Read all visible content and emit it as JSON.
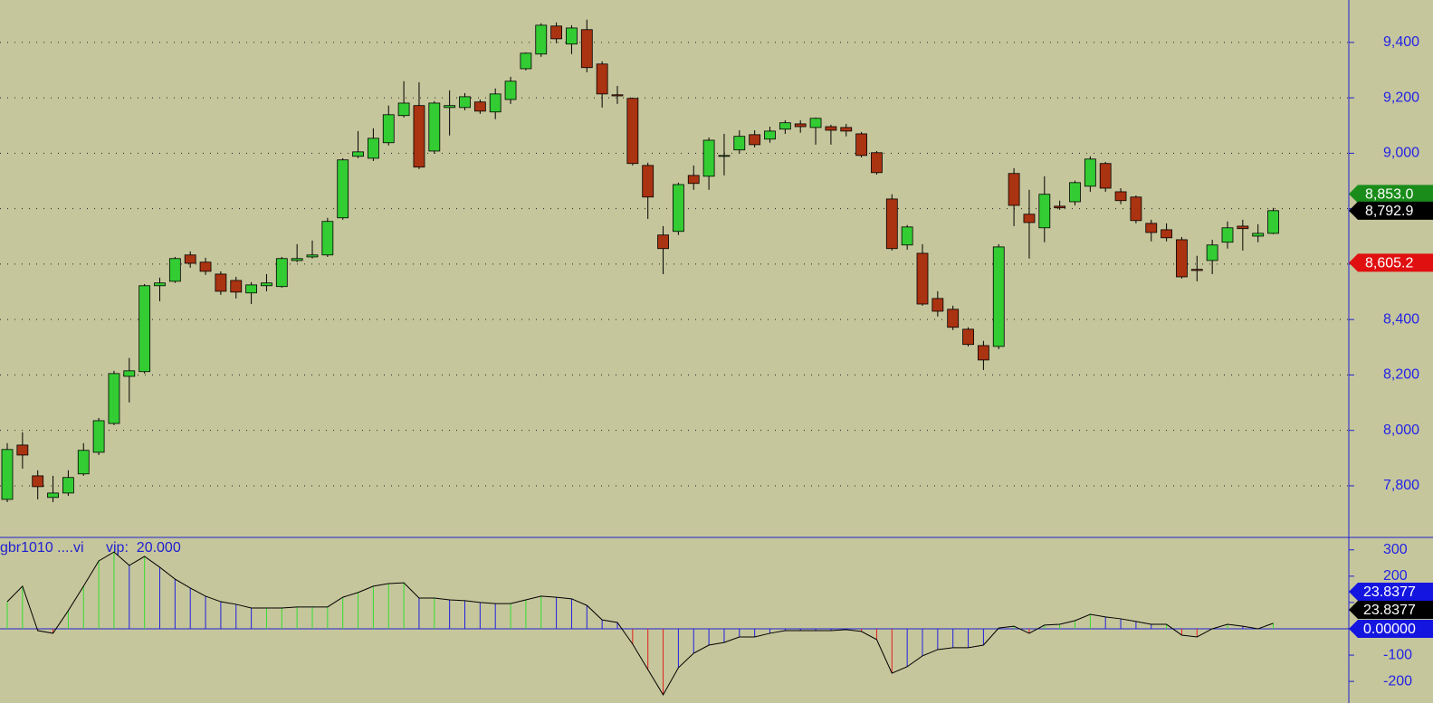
{
  "chart_data": [
    {
      "type": "candlestick",
      "up_color": "#33cc33",
      "down_color": "#aa3311",
      "grid": true,
      "ylim": [
        7617,
        9553
      ],
      "yticks": [
        {
          "value": 7800,
          "label": "7,800"
        },
        {
          "value": 8000,
          "label": "8,000"
        },
        {
          "value": 8200,
          "label": "8,200"
        },
        {
          "value": 8400,
          "label": "8,400"
        },
        {
          "value": 8600,
          "label": "8,600"
        },
        {
          "value": 8800,
          "label": "8,800"
        },
        {
          "value": 9000,
          "label": "9,000"
        },
        {
          "value": 9200,
          "label": "9,200"
        },
        {
          "value": 9400,
          "label": "9,400"
        }
      ],
      "open": [
        7751,
        7947,
        7836,
        7758,
        7774,
        7843,
        7921,
        8025,
        8195,
        8212,
        8522,
        8538,
        8633,
        8607,
        8564,
        8541,
        8496,
        8522,
        8519,
        8613,
        8626,
        8633,
        8767,
        8989,
        8982,
        9038,
        9136,
        9172,
        9008,
        9165,
        9165,
        9185,
        9149,
        9194,
        9305,
        9358,
        9459,
        9394,
        9446,
        9322,
        9211,
        9198,
        8956,
        8705,
        8718,
        8920,
        8917,
        8989,
        9012,
        9067,
        9051,
        9087,
        9106,
        9093,
        9096,
        9093,
        9070,
        9002,
        8835,
        8669,
        8639,
        8476,
        8437,
        8365,
        8306,
        8303,
        8927,
        8780,
        8731,
        8809,
        8825,
        8881,
        8963,
        8861,
        8842,
        8747,
        8724,
        8688,
        8581,
        8613,
        8679,
        8737,
        8701,
        8711
      ],
      "high": [
        7954,
        7993,
        7856,
        7836,
        7856,
        7954,
        8045,
        8215,
        8261,
        8528,
        8551,
        8626,
        8646,
        8623,
        8574,
        8554,
        8535,
        8564,
        8626,
        8672,
        8685,
        8767,
        8982,
        9080,
        9090,
        9172,
        9260,
        9256,
        9188,
        9227,
        9217,
        9194,
        9234,
        9276,
        9364,
        9469,
        9472,
        9462,
        9482,
        9332,
        9243,
        9201,
        8966,
        8737,
        8894,
        8956,
        9057,
        9070,
        9083,
        9083,
        9096,
        9119,
        9119,
        9129,
        9103,
        9106,
        9077,
        9008,
        8852,
        8741,
        8672,
        8502,
        8450,
        8372,
        8323,
        8672,
        8946,
        8868,
        8917,
        8829,
        8901,
        8989,
        8969,
        8874,
        8848,
        8760,
        8747,
        8698,
        8630,
        8688,
        8754,
        8760,
        8744,
        8803
      ],
      "low": [
        7741,
        7862,
        7751,
        7741,
        7764,
        7836,
        7911,
        8019,
        8101,
        8205,
        8466,
        8532,
        8587,
        8561,
        8489,
        8476,
        8456,
        8502,
        8515,
        8607,
        8620,
        8626,
        8760,
        8982,
        8972,
        9028,
        9129,
        8943,
        8999,
        9064,
        9155,
        9142,
        9123,
        9178,
        9299,
        9348,
        9397,
        9358,
        9292,
        9165,
        9178,
        8956,
        8763,
        8564,
        8705,
        8868,
        8868,
        8920,
        8999,
        9021,
        9038,
        9070,
        9074,
        9031,
        9031,
        9061,
        8985,
        8923,
        8649,
        8652,
        8450,
        8411,
        8362,
        8303,
        8218,
        8293,
        8737,
        8620,
        8679,
        8796,
        8812,
        8861,
        8861,
        8816,
        8747,
        8682,
        8682,
        8548,
        8538,
        8564,
        8656,
        8649,
        8679,
        8708
      ],
      "close": [
        7931,
        7911,
        7797,
        7774,
        7830,
        7928,
        8035,
        8205,
        8215,
        8522,
        8532,
        8620,
        8603,
        8574,
        8502,
        8499,
        8525,
        8532,
        8620,
        8620,
        8633,
        8754,
        8976,
        9005,
        9054,
        9139,
        9181,
        8950,
        9181,
        9172,
        9204,
        9152,
        9214,
        9260,
        9361,
        9462,
        9413,
        9452,
        9309,
        9214,
        9207,
        8963,
        8842,
        8656,
        8887,
        8891,
        9047,
        8992,
        9061,
        9031,
        9080,
        9110,
        9096,
        9126,
        9083,
        9080,
        8992,
        8930,
        8656,
        8734,
        8456,
        8430,
        8372,
        8310,
        8254,
        8662,
        8812,
        8750,
        8852,
        8803,
        8894,
        8979,
        8874,
        8829,
        8757,
        8714,
        8695,
        8554,
        8577,
        8669,
        8731,
        8728,
        8711,
        8792.9
      ],
      "markers": [
        {
          "value": 8853.0,
          "label": "8,853.0",
          "color": "#1a8c1a"
        },
        {
          "value": 8792.9,
          "label": "8,792.9",
          "color": "#000000"
        },
        {
          "value": 8605.2,
          "label": "8,605.2",
          "color": "#e01010"
        }
      ]
    },
    {
      "type": "line_histogram",
      "name": "gbr1010 ....vi",
      "param": "vip:  20.000",
      "line_color": "#000000",
      "rise_color": "#33dd33",
      "fall_color": "#e02020",
      "flat_color": "#2020e0",
      "ylim": [
        -258,
        337
      ],
      "yticks": [
        300,
        200,
        100,
        0,
        -100,
        -200
      ],
      "values": [
        103,
        162,
        -7,
        -17,
        69,
        162,
        258,
        292,
        241,
        275,
        234,
        189,
        155,
        124,
        103,
        93,
        79,
        79,
        79,
        83,
        83,
        83,
        120,
        138,
        162,
        172,
        175,
        117,
        117,
        110,
        107,
        100,
        96,
        96,
        110,
        124,
        120,
        114,
        89,
        34,
        24,
        -58,
        -155,
        -251,
        -148,
        -93,
        -62,
        -52,
        -31,
        -31,
        -17,
        -7,
        -7,
        -7,
        -7,
        -3,
        -10,
        -41,
        -169,
        -144,
        -103,
        -79,
        -72,
        -72,
        -62,
        3,
        10,
        -17,
        14,
        17,
        31,
        55,
        45,
        38,
        28,
        17,
        17,
        -24,
        -31,
        0,
        17,
        10,
        0,
        21
      ],
      "boxes": [
        {
          "value": 23.8377,
          "label": "23.8377",
          "color": "#1515e0"
        },
        {
          "value": 23.8377,
          "label": "23.8377",
          "color": "#000000"
        },
        {
          "value": 0.0,
          "label": "0.00000",
          "color": "#1515e0"
        }
      ]
    }
  ]
}
